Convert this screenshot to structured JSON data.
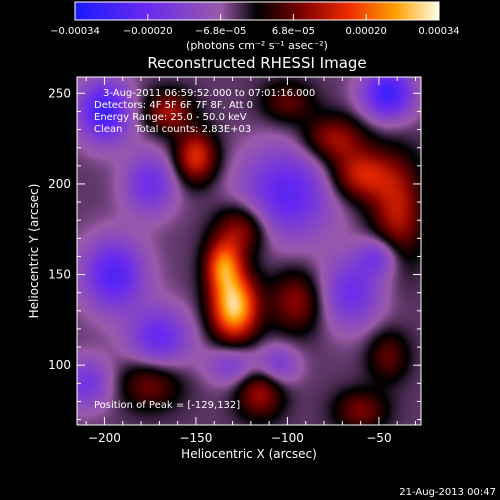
{
  "chart_data": {
    "type": "heatmap",
    "title": "Reconstructed RHESSI Image",
    "xlabel": "Heliocentric X (arcsec)",
    "ylabel": "Heliocentric Y (arcsec)",
    "xlim": [
      -215,
      -27
    ],
    "ylim": [
      67,
      259
    ],
    "x_ticks": [
      -200,
      -150,
      -100,
      -50
    ],
    "x_tick_labels": [
      "−200",
      "−150",
      "−100",
      "−50"
    ],
    "y_ticks": [
      100,
      150,
      200,
      250
    ],
    "y_tick_labels": [
      "100",
      "150",
      "200",
      "250"
    ],
    "colorbar": {
      "min": -0.00034,
      "max": 0.00034,
      "tick_labels": [
        "−0.00034",
        "−0.00020",
        "−6.8e−05",
        "6.8e−05",
        "0.00020",
        "0.00034"
      ],
      "unit_label": "(photons cm⁻² s⁻¹ asec⁻²)"
    },
    "annotations": {
      "time_range": "3-Aug-2011 06:59:52.000 to 07:01:16.000",
      "detectors": "Detectors: 4F 5F 6F 7F 8F, Att 0",
      "energy_range": "Energy Range: 25.0 - 50.0 keV",
      "clean_line": "Clean    Total counts: 2.83E+03",
      "peak": "Position of Peak = [-129,132]"
    },
    "peak": [
      -129,
      132
    ],
    "sources": [
      {
        "x": -129,
        "y": 132,
        "amp": 1.0,
        "sx": 9,
        "sy": 13
      },
      {
        "x": -135,
        "y": 155,
        "amp": 0.7,
        "sx": 7,
        "sy": 10
      },
      {
        "x": -125,
        "y": 175,
        "amp": 0.45,
        "sx": 10,
        "sy": 10
      },
      {
        "x": -150,
        "y": 215,
        "amp": 0.6,
        "sx": 8,
        "sy": 10
      },
      {
        "x": -165,
        "y": 240,
        "amp": 0.45,
        "sx": 9,
        "sy": 8
      },
      {
        "x": -60,
        "y": 205,
        "amp": 0.55,
        "sx": 12,
        "sy": 10
      },
      {
        "x": -40,
        "y": 185,
        "amp": 0.5,
        "sx": 10,
        "sy": 20
      },
      {
        "x": -75,
        "y": 225,
        "amp": 0.45,
        "sx": 12,
        "sy": 9
      },
      {
        "x": -95,
        "y": 135,
        "amp": 0.4,
        "sx": 10,
        "sy": 12
      },
      {
        "x": -175,
        "y": 90,
        "amp": 0.35,
        "sx": 12,
        "sy": 10
      },
      {
        "x": -115,
        "y": 85,
        "amp": 0.45,
        "sx": 9,
        "sy": 10
      },
      {
        "x": -60,
        "y": 75,
        "amp": 0.35,
        "sx": 10,
        "sy": 8
      },
      {
        "x": -100,
        "y": 245,
        "amp": 0.3,
        "sx": 10,
        "sy": 8
      },
      {
        "x": -45,
        "y": 105,
        "amp": 0.3,
        "sx": 8,
        "sy": 10
      },
      {
        "x": -200,
        "y": 240,
        "amp": -0.7,
        "sx": 10,
        "sy": 12
      },
      {
        "x": -195,
        "y": 150,
        "amp": -0.6,
        "sx": 12,
        "sy": 14
      },
      {
        "x": -100,
        "y": 195,
        "amp": -0.55,
        "sx": 18,
        "sy": 18
      },
      {
        "x": -45,
        "y": 250,
        "amp": -0.7,
        "sx": 10,
        "sy": 10
      },
      {
        "x": -170,
        "y": 115,
        "amp": -0.5,
        "sx": 12,
        "sy": 12
      },
      {
        "x": -65,
        "y": 140,
        "amp": -0.45,
        "sx": 12,
        "sy": 14
      },
      {
        "x": -175,
        "y": 200,
        "amp": -0.45,
        "sx": 10,
        "sy": 12
      },
      {
        "x": -130,
        "y": 100,
        "amp": -0.35,
        "sx": 10,
        "sy": 8
      },
      {
        "x": -50,
        "y": 160,
        "amp": -0.4,
        "sx": 8,
        "sy": 8
      },
      {
        "x": -210,
        "y": 90,
        "amp": -0.4,
        "sx": 10,
        "sy": 10
      },
      {
        "x": -105,
        "y": 100,
        "amp": -0.35,
        "sx": 8,
        "sy": 8
      }
    ]
  },
  "footer_timestamp": "21-Aug-2013 00:47"
}
